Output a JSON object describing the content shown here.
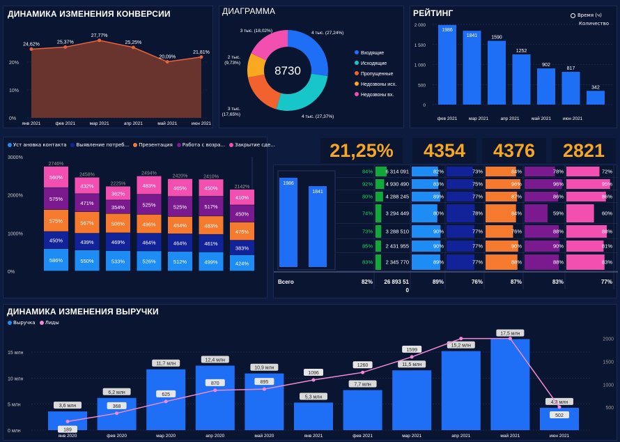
{
  "conversion": {
    "title": "ДИНАМИКА ИЗМЕНЕНИЯ КОНВЕРСИИ",
    "yticks": [
      "20%",
      "10%",
      "0%"
    ],
    "months": [
      "янв 2021",
      "фев 2021",
      "мар 2021",
      "апр 2021",
      "май 2021",
      "июн 2021"
    ],
    "values": [
      24.62,
      25.37,
      27.77,
      25.25,
      20.09,
      21.81
    ],
    "labels": [
      "24,62%",
      "25,37%",
      "27,77%",
      "25,25%",
      "20,09%",
      "21,81%"
    ]
  },
  "donut": {
    "title": "ДИАГРАММА",
    "center": "8730",
    "segments": [
      {
        "name": "Входящие",
        "value": 27.24,
        "label": "4 тыс. (27,24%)",
        "color": "#1e6ff5"
      },
      {
        "name": "Исходящие",
        "value": 27.37,
        "label": "4 тыс. (27,37%)",
        "color": "#16c6c8"
      },
      {
        "name": "Пропущенные",
        "value": 17.65,
        "label": "3 тыс. (17,65%)",
        "color": "#f2622e"
      },
      {
        "name": "Недозвоны исх.",
        "value": 9.73,
        "label": "2 тыс. (9,73%)",
        "color": "#f8a91f"
      },
      {
        "name": "Недозвоны вх.",
        "value": 18.02,
        "label": "3 тыс. (18,02%)",
        "color": "#f24fb1"
      }
    ]
  },
  "rating": {
    "title": "РЕЙТИНГ",
    "legend": [
      "Время (ч)",
      "Количество"
    ],
    "yticks": [
      "2 000",
      "1 500",
      "1 000",
      "500",
      "0"
    ],
    "months": [
      "фев 2021",
      "мар 2021",
      "апр 2021",
      "май 2021",
      "июн 2021"
    ],
    "values": [
      1986,
      1841,
      1590,
      1252,
      902,
      817,
      342
    ],
    "labels": [
      "1986",
      "1841",
      "1590",
      "1252",
      "902",
      "817",
      "342"
    ]
  },
  "stacked": {
    "legend": [
      {
        "name": "Уст ановка контакта",
        "color": "#1e8cf5"
      },
      {
        "name": "Выявление потреб...",
        "color": "#12239a"
      },
      {
        "name": "Презентация",
        "color": "#f57a2e"
      },
      {
        "name": "Работа с возра...",
        "color": "#7a1a8e"
      },
      {
        "name": "Закрытие сде...",
        "color": "#f24fb1"
      }
    ],
    "yticks": [
      "3000%",
      "2000%",
      "1000%",
      "0%"
    ],
    "totals": [
      "2746%",
      "2458%",
      "2225%",
      "2494%",
      "2420%",
      "2410%",
      "2142%"
    ],
    "columns": [
      [
        586,
        450,
        575,
        575,
        560
      ],
      [
        550,
        439,
        567,
        471,
        432
      ],
      [
        533,
        469,
        506,
        354,
        362
      ],
      [
        526,
        464,
        496,
        525,
        483
      ],
      [
        512,
        464,
        454,
        525,
        465
      ],
      [
        499,
        461,
        483,
        517,
        450
      ],
      [
        424,
        383,
        475,
        450,
        410
      ]
    ]
  },
  "kpis": [
    "21,25%",
    "4354",
    "4376",
    "2821"
  ],
  "table": {
    "mini_bars": [
      "1986",
      "1841"
    ],
    "rows": [
      [
        "84%",
        "6 314 091",
        "82%",
        "73%",
        "84%",
        "78%",
        "72%"
      ],
      [
        "92%",
        "4 930 490",
        "83%",
        "75%",
        "96%",
        "96%",
        "95%"
      ],
      [
        "80%",
        "4 288 245",
        "89%",
        "77%",
        "87%",
        "86%",
        "86%"
      ],
      [
        "74%",
        "3 294 449",
        "80%",
        "78%",
        "84%",
        "59%",
        "60%"
      ],
      [
        "73%",
        "3 288 510",
        "90%",
        "77%",
        "76%",
        "88%",
        "88%"
      ],
      [
        "85%",
        "2 431 955",
        "90%",
        "77%",
        "90%",
        "90%",
        "81%"
      ],
      [
        "83%",
        "2 345 770",
        "89%",
        "77%",
        "88%",
        "88%",
        "83%"
      ]
    ],
    "total_label": "Всего",
    "totals": [
      "82%",
      "26 893 51",
      "89%",
      "76%",
      "87%",
      "83%",
      "77%"
    ],
    "total_sub": "0"
  },
  "revenue": {
    "title": "ДИНАМИКА ИЗМЕНЕНИЯ ВЫРУЧКИ",
    "legend": [
      "Выручка",
      "Лиды"
    ],
    "yticks": [
      "15 млн",
      "10 млн",
      "5 млн",
      "0 млн"
    ],
    "yticks_right": [
      "2000",
      "1500",
      "1000",
      "500"
    ],
    "months": [
      "янв 2020",
      "фев 2020",
      "мар 2020",
      "апр 2020",
      "май 2020",
      "янв 2021",
      "фев 2021",
      "мар 2021",
      "апр 2021",
      "май 2021",
      "июн 2021"
    ],
    "revenue": [
      3.6,
      6.2,
      11.7,
      12.4,
      10.9,
      5.3,
      7.7,
      11.5,
      15.2,
      17.5,
      4.3
    ],
    "revenue_labels": [
      "3,6 млн",
      "6,2 млн",
      "11,7 млн",
      "12,4 млн",
      "10,9 млн",
      "5,3 млн",
      "7,7 млн",
      "11,5 млн",
      "15,2 млн",
      "17,5 млн",
      "4,3 млн"
    ],
    "leads": [
      189,
      368,
      625,
      870,
      895,
      1096,
      1260,
      1599,
      2000,
      2000,
      502
    ],
    "leads_labels": [
      "189",
      "368",
      "625",
      "870",
      "895",
      "1096",
      "1260",
      "1599",
      "",
      "",
      "502"
    ]
  }
}
